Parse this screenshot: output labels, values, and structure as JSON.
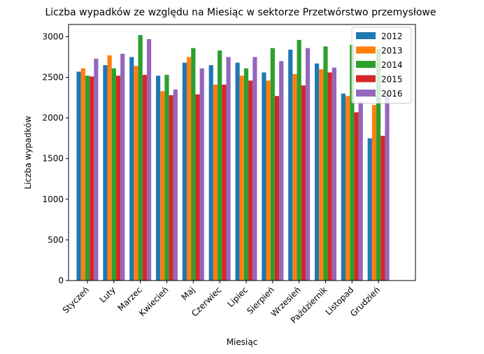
{
  "chart_data": {
    "type": "bar",
    "title": "Liczba wypadków ze względu na Miesiąc w sektorze Przetwórstwo przemysłowe",
    "xlabel": "Miesiąc",
    "ylabel": "Liczba wypadków",
    "ylim": [
      0,
      3150
    ],
    "yticks": [
      0,
      500,
      1000,
      1500,
      2000,
      2500,
      3000
    ],
    "grid": false,
    "legend_position": "top-right",
    "categories": [
      "Styczeń",
      "Luty",
      "Marzec",
      "Kwiecień",
      "Maj",
      "Czerwiec",
      "Lipiec",
      "Sierpień",
      "Wrzesień",
      "Październik",
      "Listopad",
      "Grudzień"
    ],
    "series": [
      {
        "name": "2012",
        "color": "#1f77b4",
        "values": [
          2570,
          2650,
          2750,
          2520,
          2680,
          2650,
          2680,
          2560,
          2840,
          2670,
          2300,
          1750
        ]
      },
      {
        "name": "2013",
        "color": "#ff7f0e",
        "values": [
          2610,
          2770,
          2640,
          2330,
          2750,
          2410,
          2520,
          2460,
          2540,
          2600,
          2270,
          2160
        ]
      },
      {
        "name": "2014",
        "color": "#2ca02c",
        "values": [
          2520,
          2610,
          3020,
          2530,
          2860,
          2830,
          2610,
          2860,
          2960,
          2880,
          2900,
          2850
        ]
      },
      {
        "name": "2015",
        "color": "#d62728",
        "values": [
          2510,
          2520,
          2530,
          2280,
          2290,
          2410,
          2460,
          2270,
          2400,
          2560,
          2070,
          1780
        ]
      },
      {
        "name": "2016",
        "color": "#9467bd",
        "values": [
          2730,
          2790,
          2970,
          2350,
          2610,
          2750,
          2750,
          2700,
          2860,
          2620,
          2200,
          2310
        ]
      }
    ]
  }
}
